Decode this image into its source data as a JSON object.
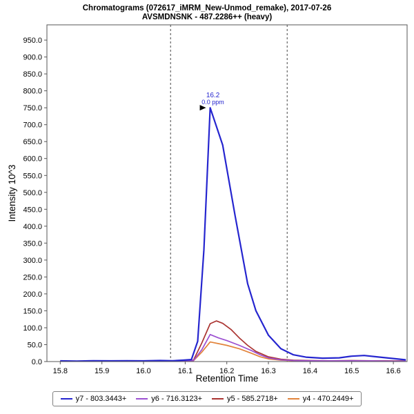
{
  "chart_data": {
    "type": "line",
    "title": "Chromatograms (072617_iMRM_New-Unmod_remake), 2017-07-26",
    "subtitle": "AVSMDNSNK - 487.2286++ (heavy)",
    "xlabel": "Retention Time",
    "ylabel": "Intensity 10^3",
    "xlim": [
      15.768,
      16.633
    ],
    "ylim": [
      0,
      995
    ],
    "xticks": [
      15.8,
      15.9,
      16.0,
      16.1,
      16.2,
      16.3,
      16.4,
      16.5,
      16.6
    ],
    "yticks": [
      0,
      50,
      100,
      150,
      200,
      250,
      300,
      350,
      400,
      450,
      500,
      550,
      600,
      650,
      700,
      750,
      800,
      850,
      900,
      950
    ],
    "boundaries": [
      16.065,
      16.345
    ],
    "peak": {
      "x": 16.16,
      "y": 750,
      "rt_label": "16.2",
      "ppm_label": "0.0 ppm"
    },
    "grid": false,
    "legend_position": "bottom",
    "series": [
      {
        "id": "y7",
        "name": "y7 - 803.3443+",
        "color": "#2525cf",
        "x": [
          15.8,
          15.84,
          15.88,
          15.92,
          15.96,
          16.0,
          16.04,
          16.07,
          16.095,
          16.115,
          16.13,
          16.145,
          16.16,
          16.19,
          16.22,
          16.25,
          16.27,
          16.3,
          16.33,
          16.36,
          16.39,
          16.43,
          16.47,
          16.5,
          16.53,
          16.56,
          16.6,
          16.63
        ],
        "y": [
          2,
          1.5,
          2.5,
          2,
          2.5,
          2,
          3,
          2.5,
          4,
          6,
          60,
          330,
          750,
          640,
          430,
          230,
          150,
          78,
          38,
          20,
          13,
          10,
          11,
          16,
          18,
          14,
          9,
          5
        ]
      },
      {
        "id": "y6",
        "name": "y6 - 716.3123+",
        "color": "#9b4fd1",
        "x": [
          15.8,
          15.9,
          16.0,
          16.05,
          16.095,
          16.12,
          16.14,
          16.16,
          16.18,
          16.2,
          16.23,
          16.26,
          16.28,
          16.3,
          16.33,
          16.36,
          16.4,
          16.45,
          16.5,
          16.55,
          16.6,
          16.63
        ],
        "y": [
          1,
          1,
          1.5,
          1,
          2,
          3,
          35,
          80,
          70,
          62,
          48,
          32,
          20,
          11,
          5,
          3,
          2.5,
          2,
          2.5,
          2,
          1.5,
          1.5
        ]
      },
      {
        "id": "y5",
        "name": "y5 - 585.2718+",
        "color": "#aa3330",
        "x": [
          15.8,
          15.9,
          16.0,
          16.05,
          16.095,
          16.12,
          16.14,
          16.16,
          16.175,
          16.19,
          16.21,
          16.23,
          16.25,
          16.27,
          16.3,
          16.33,
          16.36,
          16.4,
          16.45,
          16.5,
          16.55,
          16.6,
          16.63
        ],
        "y": [
          1,
          1.5,
          1,
          2,
          2,
          4,
          55,
          112,
          120,
          113,
          95,
          70,
          48,
          30,
          14,
          7,
          4,
          3,
          2.5,
          3,
          2.5,
          2,
          2
        ]
      },
      {
        "id": "y4",
        "name": "y4 - 470.2449+",
        "color": "#e2833a",
        "x": [
          15.8,
          15.9,
          16.0,
          16.05,
          16.095,
          16.12,
          16.14,
          16.16,
          16.18,
          16.2,
          16.23,
          16.26,
          16.28,
          16.3,
          16.33,
          16.36,
          16.4,
          16.45,
          16.5,
          16.55,
          16.6,
          16.63
        ],
        "y": [
          1,
          1,
          1,
          1.5,
          1.5,
          2.5,
          28,
          58,
          53,
          48,
          38,
          24,
          14,
          8,
          4,
          2.5,
          2,
          2,
          2,
          2,
          1.5,
          1.5
        ]
      }
    ]
  }
}
